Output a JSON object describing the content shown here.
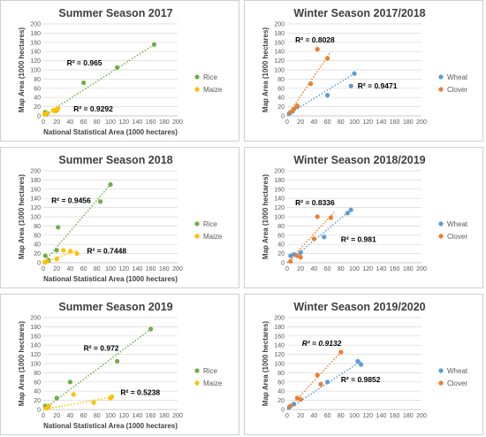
{
  "colors": {
    "green": "#70AD47",
    "yellow": "#FFC000",
    "blue": "#5B9BD5",
    "orange": "#ED7D31",
    "grid": "#D9D9D9",
    "axis": "#595959"
  },
  "chart_data": [
    {
      "type": "scatter",
      "title": "Summer Season 2017",
      "xlabel": "National Statistical Area (1000 hectares)",
      "ylabel": "Map Area (1000 hectares)",
      "xlim": [
        0,
        200
      ],
      "ylim": [
        0,
        200
      ],
      "xticks": [
        0,
        20,
        40,
        60,
        80,
        100,
        120,
        140,
        160,
        180,
        200
      ],
      "yticks": [
        0,
        20,
        40,
        60,
        80,
        100,
        120,
        140,
        160,
        180,
        200
      ],
      "grid": "horizontal",
      "legend_position": "right",
      "series": [
        {
          "name": "Rice",
          "color": "#70AD47",
          "x": [
            3,
            5,
            20,
            60,
            110,
            165
          ],
          "y": [
            8,
            4,
            12,
            72,
            105,
            155
          ],
          "trend": [
            [
              0,
              0
            ],
            [
              165,
              155
            ]
          ],
          "r2": "R² = 0.965",
          "r2_pos": [
            35,
            110
          ]
        },
        {
          "name": "Maize",
          "color": "#FFC000",
          "x": [
            2,
            5,
            15,
            18,
            20,
            22
          ],
          "y": [
            3,
            6,
            12,
            10,
            14,
            16
          ],
          "trend": [
            [
              0,
              0
            ],
            [
              25,
              16
            ]
          ],
          "r2": "R² = 0.9292",
          "r2_pos": [
            45,
            10
          ]
        }
      ]
    },
    {
      "type": "scatter",
      "title": "Winter Season 2017/2018",
      "xlabel": "",
      "ylabel": "Map Area (1000 hectares)",
      "xlim": [
        0,
        200
      ],
      "ylim": [
        0,
        200
      ],
      "xticks": [
        0,
        20,
        40,
        60,
        80,
        100,
        120,
        140,
        160,
        180,
        200
      ],
      "yticks": [
        0,
        20,
        40,
        60,
        80,
        100,
        120,
        140,
        160,
        180,
        200
      ],
      "grid": "horizontal",
      "legend_position": "right",
      "series": [
        {
          "name": "Wheat",
          "color": "#5B9BD5",
          "x": [
            3,
            8,
            15,
            60,
            95,
            100
          ],
          "y": [
            5,
            10,
            20,
            45,
            65,
            92
          ],
          "trend": [
            [
              0,
              2
            ],
            [
              100,
              92
            ]
          ],
          "r2": "R² = 0.9471",
          "r2_pos": [
            105,
            60
          ]
        },
        {
          "name": "Clover",
          "color": "#ED7D31",
          "x": [
            5,
            10,
            15,
            35,
            45,
            60
          ],
          "y": [
            8,
            15,
            22,
            70,
            145,
            125
          ],
          "trend": [
            [
              0,
              0
            ],
            [
              65,
              140
            ]
          ],
          "r2": "R² = 0.8028",
          "r2_pos": [
            12,
            160
          ]
        }
      ]
    },
    {
      "type": "scatter",
      "title": "Summer Season 2018",
      "xlabel": "National Statistical Area (1000 hectares)",
      "ylabel": "Map Area (1000 hectares)",
      "xlim": [
        0,
        200
      ],
      "ylim": [
        0,
        200
      ],
      "xticks": [
        0,
        20,
        40,
        60,
        80,
        100,
        120,
        140,
        160,
        180,
        200
      ],
      "yticks": [
        0,
        20,
        40,
        60,
        80,
        100,
        120,
        140,
        160,
        180,
        200
      ],
      "grid": "horizontal",
      "legend_position": "right",
      "series": [
        {
          "name": "Rice",
          "color": "#70AD47",
          "x": [
            3,
            8,
            20,
            22,
            85,
            100
          ],
          "y": [
            15,
            5,
            27,
            77,
            133,
            170
          ],
          "trend": [
            [
              0,
              0
            ],
            [
              100,
              170
            ]
          ],
          "r2": "R² = 0.9456",
          "r2_pos": [
            12,
            130
          ]
        },
        {
          "name": "Maize",
          "color": "#FFC000",
          "x": [
            2,
            5,
            20,
            30,
            40,
            50
          ],
          "y": [
            1,
            3,
            8,
            27,
            25,
            20
          ],
          "trend": [
            [
              0,
              0
            ],
            [
              50,
              27
            ]
          ],
          "r2": "R² = 0.7448",
          "r2_pos": [
            65,
            20
          ]
        }
      ]
    },
    {
      "type": "scatter",
      "title": "Winter Season 2018/2019",
      "xlabel": "",
      "ylabel": "Map Area (1000 hectares)",
      "xlim": [
        0,
        200
      ],
      "ylim": [
        0,
        200
      ],
      "xticks": [
        0,
        20,
        40,
        60,
        80,
        100,
        120,
        140,
        160,
        180,
        200
      ],
      "yticks": [
        0,
        20,
        40,
        60,
        80,
        100,
        120,
        140,
        160,
        180,
        200
      ],
      "grid": "horizontal",
      "legend_position": "right",
      "series": [
        {
          "name": "Wheat",
          "color": "#5B9BD5",
          "x": [
            5,
            10,
            20,
            55,
            90,
            95
          ],
          "y": [
            15,
            18,
            22,
            56,
            108,
            115
          ],
          "trend": [
            [
              0,
              0
            ],
            [
              95,
              115
            ]
          ],
          "r2": "R² = 0.981",
          "r2_pos": [
            80,
            45
          ]
        },
        {
          "name": "Clover",
          "color": "#ED7D31",
          "x": [
            5,
            15,
            20,
            40,
            45,
            65
          ],
          "y": [
            3,
            15,
            12,
            52,
            100,
            98
          ],
          "trend": [
            [
              0,
              0
            ],
            [
              70,
              110
            ]
          ],
          "r2": "R² = 0.8336",
          "r2_pos": [
            12,
            125
          ]
        }
      ]
    },
    {
      "type": "scatter",
      "title": "Summer Season 2019",
      "xlabel": "National Statistical Area (1000 hectares)",
      "ylabel": "Map Area (1000 hectares)",
      "xlim": [
        0,
        200
      ],
      "ylim": [
        0,
        200
      ],
      "xticks": [
        0,
        20,
        40,
        60,
        80,
        100,
        120,
        140,
        160,
        180,
        200
      ],
      "yticks": [
        0,
        20,
        40,
        60,
        80,
        100,
        120,
        140,
        160,
        180,
        200
      ],
      "grid": "horizontal",
      "legend_position": "right",
      "series": [
        {
          "name": "Rice",
          "color": "#70AD47",
          "x": [
            3,
            5,
            20,
            40,
            110,
            160
          ],
          "y": [
            8,
            3,
            25,
            60,
            105,
            175
          ],
          "trend": [
            [
              0,
              0
            ],
            [
              160,
              175
            ]
          ],
          "r2": "R² = 0.972",
          "r2_pos": [
            60,
            128
          ]
        },
        {
          "name": "Maize",
          "color": "#FFC000",
          "x": [
            5,
            8,
            45,
            75,
            100,
            102
          ],
          "y": [
            3,
            8,
            33,
            15,
            25,
            28
          ],
          "trend": [
            [
              0,
              0
            ],
            [
              105,
              28
            ]
          ],
          "r2": "R² = 0.5238",
          "r2_pos": [
            115,
            32
          ]
        }
      ]
    },
    {
      "type": "scatter",
      "title": "Winter Season 2019/2020",
      "xlabel": "",
      "ylabel": "Map Area (1000 hectares)",
      "xlim": [
        0,
        200
      ],
      "ylim": [
        0,
        200
      ],
      "xticks": [
        0,
        20,
        40,
        60,
        80,
        100,
        120,
        140,
        160,
        180,
        200
      ],
      "yticks": [
        0,
        20,
        40,
        60,
        80,
        100,
        120,
        140,
        160,
        180,
        200
      ],
      "grid": "horizontal",
      "legend_position": "right",
      "series": [
        {
          "name": "Wheat",
          "color": "#5B9BD5",
          "x": [
            3,
            10,
            20,
            60,
            105,
            110
          ],
          "y": [
            5,
            12,
            22,
            60,
            105,
            98
          ],
          "trend": [
            [
              0,
              0
            ],
            [
              110,
              105
            ]
          ],
          "r2": "R² = 0.9852",
          "r2_pos": [
            80,
            60
          ]
        },
        {
          "name": "Clover",
          "color": "#ED7D31",
          "x": [
            5,
            15,
            20,
            45,
            50,
            80
          ],
          "y": [
            8,
            25,
            22,
            75,
            55,
            125
          ],
          "trend": [
            [
              0,
              0
            ],
            [
              80,
              125
            ]
          ],
          "r2": "R² = 0.9132",
          "r2_pos": [
            22,
            138
          ],
          "r2_italic": true
        }
      ]
    }
  ]
}
